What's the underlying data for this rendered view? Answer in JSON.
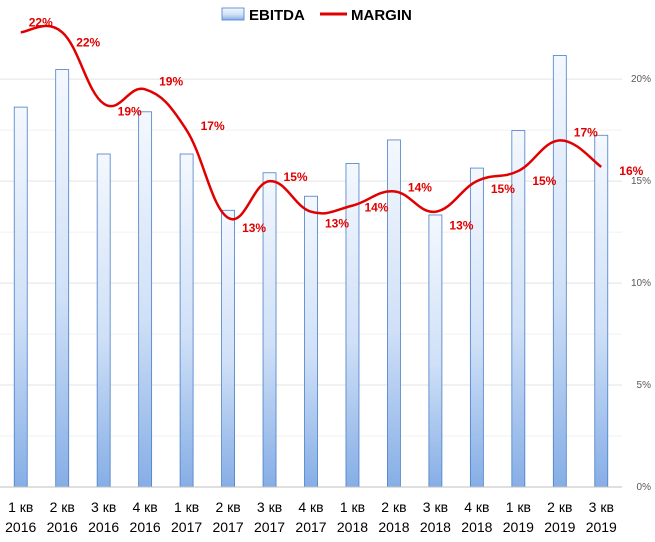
{
  "chart_data": {
    "type": "bar",
    "categories": [
      [
        "1 кв",
        "2016"
      ],
      [
        "2 кв",
        "2016"
      ],
      [
        "3 кв",
        "2016"
      ],
      [
        "4 кв",
        "2016"
      ],
      [
        "1 кв",
        "2017"
      ],
      [
        "2 кв",
        "2017"
      ],
      [
        "3 кв",
        "2017"
      ],
      [
        "4 кв",
        "2017"
      ],
      [
        "1 кв",
        "2018"
      ],
      [
        "2 кв",
        "2018"
      ],
      [
        "3 кв",
        "2018"
      ],
      [
        "4 кв",
        "2018"
      ],
      [
        "1 кв",
        "2019"
      ],
      [
        "2 кв",
        "2019"
      ],
      [
        "3 кв",
        "2019"
      ]
    ],
    "legend": {
      "position": "top",
      "items": [
        "EBITDA",
        "MARGIN"
      ]
    },
    "series": [
      {
        "name": "EBITDA",
        "kind": "bar",
        "axis": "hidden",
        "values": [
          81,
          89,
          71,
          80,
          71,
          59,
          67,
          62,
          69,
          74,
          58,
          68,
          76,
          92,
          75
        ],
        "color": "#a9c6ef"
      },
      {
        "name": "MARGIN",
        "kind": "line",
        "axis": "right",
        "values": [
          22.3,
          22.3,
          18.8,
          19.5,
          17.5,
          13.2,
          15.0,
          13.5,
          13.8,
          14.5,
          13.5,
          15.0,
          15.5,
          17.0,
          15.7
        ],
        "labels": [
          "22%",
          "22%",
          "19%",
          "19%",
          "17%",
          "13%",
          "15%",
          "13%",
          "14%",
          "14%",
          "13%",
          "15%",
          "15%",
          "17%",
          "16%"
        ],
        "color": "#e00000"
      }
    ],
    "y_right": {
      "ticks": [
        "0%",
        "5%",
        "10%",
        "15%",
        "20%"
      ],
      "tick_values": [
        0,
        5,
        10,
        15,
        20
      ],
      "ylim": [
        0,
        23
      ]
    },
    "y_left_hidden_lim": [
      0,
      100
    ],
    "grid": true
  }
}
